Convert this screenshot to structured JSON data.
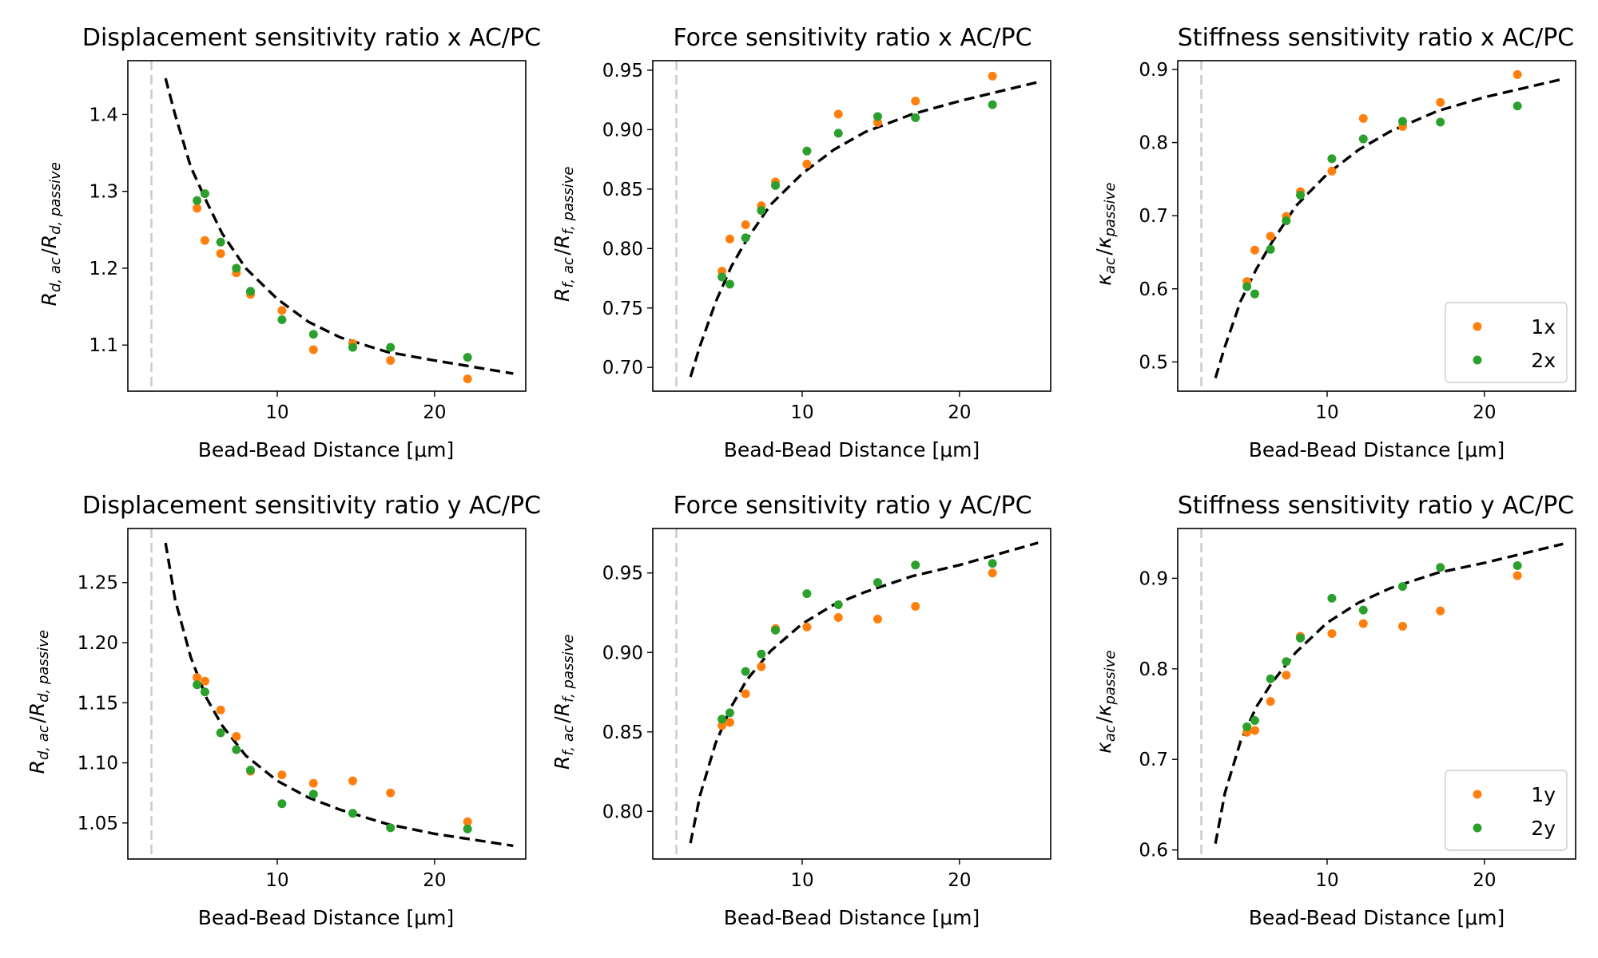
{
  "colors": {
    "orange": "#ff7f0e",
    "green": "#2ca02c",
    "fit": "#000000",
    "reference": "#cccccc"
  },
  "chart_data": [
    {
      "type": "scatter",
      "title": "Displacement sensitivity ratio x AC/PC",
      "xlabel": "Bead-Bead Distance [μm]",
      "ylabel_main": "R",
      "ylabel_parts": [
        {
          "text": "R",
          "style": "italic"
        },
        {
          "text": "d, ac",
          "style": "sub"
        },
        {
          "text": "/",
          "style": "normal"
        },
        {
          "text": "R",
          "style": "italic"
        },
        {
          "text": "d, passive",
          "style": "sub"
        }
      ],
      "xlim": [
        0.5,
        25.8
      ],
      "ylim": [
        1.04,
        1.47
      ],
      "xticks": [
        10,
        20
      ],
      "yticks": [
        1.1,
        1.2,
        1.3,
        1.4
      ],
      "ytick_labels": [
        "1.1",
        "1.2",
        "1.3",
        "1.4"
      ],
      "reference_x": 2.0,
      "legend": null,
      "series": [
        {
          "color": "orange",
          "x": [
            4.9,
            5.4,
            6.4,
            7.4,
            8.3,
            10.3,
            12.3,
            14.8,
            17.2,
            22.1
          ],
          "y": [
            1.278,
            1.236,
            1.219,
            1.194,
            1.166,
            1.145,
            1.094,
            1.102,
            1.08,
            1.056
          ]
        },
        {
          "color": "green",
          "x": [
            4.9,
            5.4,
            6.4,
            7.4,
            8.3,
            10.3,
            12.3,
            14.8,
            17.2,
            22.1
          ],
          "y": [
            1.288,
            1.297,
            1.234,
            1.2,
            1.17,
            1.133,
            1.114,
            1.097,
            1.097,
            1.084
          ]
        }
      ],
      "fit": {
        "x": [
          2.9,
          3.5,
          4.5,
          5.5,
          6.5,
          8,
          10,
          12,
          14,
          17,
          20,
          25
        ],
        "y": [
          1.447,
          1.4,
          1.332,
          1.287,
          1.245,
          1.2,
          1.16,
          1.13,
          1.11,
          1.091,
          1.08,
          1.063
        ]
      }
    },
    {
      "type": "scatter",
      "title": "Force sensitivity ratio x AC/PC",
      "xlabel": "Bead-Bead Distance [μm]",
      "ylabel_parts": [
        {
          "text": "R",
          "style": "italic"
        },
        {
          "text": "f, ac",
          "style": "sub"
        },
        {
          "text": "/",
          "style": "normal"
        },
        {
          "text": "R",
          "style": "italic"
        },
        {
          "text": "f, passive",
          "style": "sub"
        }
      ],
      "xlim": [
        0.5,
        25.8
      ],
      "ylim": [
        0.68,
        0.958
      ],
      "xticks": [
        10,
        20
      ],
      "yticks": [
        0.7,
        0.75,
        0.8,
        0.85,
        0.9,
        0.95
      ],
      "ytick_labels": [
        "0.70",
        "0.75",
        "0.80",
        "0.85",
        "0.90",
        "0.95"
      ],
      "reference_x": 2.0,
      "legend": null,
      "series": [
        {
          "color": "orange",
          "x": [
            4.9,
            5.4,
            6.4,
            7.4,
            8.3,
            10.3,
            12.3,
            14.8,
            17.2,
            22.1
          ],
          "y": [
            0.781,
            0.808,
            0.82,
            0.836,
            0.856,
            0.871,
            0.913,
            0.906,
            0.924,
            0.945
          ]
        },
        {
          "color": "green",
          "x": [
            4.9,
            5.4,
            6.4,
            7.4,
            8.3,
            10.3,
            12.3,
            14.8,
            17.2,
            22.1
          ],
          "y": [
            0.776,
            0.77,
            0.809,
            0.832,
            0.853,
            0.882,
            0.897,
            0.911,
            0.91,
            0.921
          ]
        }
      ],
      "fit": {
        "x": [
          2.9,
          3.5,
          4.5,
          5.5,
          6.5,
          8,
          10,
          12,
          14,
          17,
          20,
          25
        ],
        "y": [
          0.692,
          0.718,
          0.755,
          0.785,
          0.808,
          0.837,
          0.863,
          0.883,
          0.898,
          0.913,
          0.924,
          0.94
        ]
      }
    },
    {
      "type": "scatter",
      "title": "Stiffness sensitivity ratio x AC/PC",
      "xlabel": "Bead-Bead Distance [μm]",
      "ylabel_parts": [
        {
          "text": "κ",
          "style": "italic"
        },
        {
          "text": "ac",
          "style": "sub"
        },
        {
          "text": "/",
          "style": "normal"
        },
        {
          "text": "κ",
          "style": "italic"
        },
        {
          "text": "passive",
          "style": "sub"
        }
      ],
      "xlim": [
        0.5,
        25.8
      ],
      "ylim": [
        0.46,
        0.912
      ],
      "xticks": [
        10,
        20
      ],
      "yticks": [
        0.5,
        0.6,
        0.7,
        0.8,
        0.9
      ],
      "ytick_labels": [
        "0.5",
        "0.6",
        "0.7",
        "0.8",
        "0.9"
      ],
      "reference_x": 2.0,
      "legend": {
        "position": "lower-right",
        "entries": [
          {
            "label": "1x",
            "color": "orange"
          },
          {
            "label": "2x",
            "color": "green"
          }
        ]
      },
      "series": [
        {
          "color": "orange",
          "x": [
            4.9,
            5.4,
            6.4,
            7.4,
            8.3,
            10.3,
            12.3,
            14.8,
            17.2,
            22.1
          ],
          "y": [
            0.61,
            0.653,
            0.672,
            0.699,
            0.733,
            0.761,
            0.833,
            0.822,
            0.855,
            0.893
          ]
        },
        {
          "color": "green",
          "x": [
            4.9,
            5.4,
            6.4,
            7.4,
            8.3,
            10.3,
            12.3,
            14.8,
            17.2,
            22.1
          ],
          "y": [
            0.603,
            0.593,
            0.654,
            0.693,
            0.728,
            0.778,
            0.805,
            0.829,
            0.828,
            0.85
          ]
        }
      ],
      "fit": {
        "x": [
          2.9,
          3.5,
          4.5,
          5.5,
          6.5,
          8,
          10,
          12,
          14,
          17,
          20,
          25
        ],
        "y": [
          0.478,
          0.521,
          0.583,
          0.627,
          0.664,
          0.713,
          0.757,
          0.79,
          0.815,
          0.843,
          0.862,
          0.887
        ]
      }
    },
    {
      "type": "scatter",
      "title": "Displacement sensitivity ratio y AC/PC",
      "xlabel": "Bead-Bead Distance [μm]",
      "ylabel_parts": [
        {
          "text": "R",
          "style": "italic"
        },
        {
          "text": "d, ac",
          "style": "sub"
        },
        {
          "text": "/",
          "style": "normal"
        },
        {
          "text": "R",
          "style": "italic"
        },
        {
          "text": "d, passive",
          "style": "sub"
        }
      ],
      "xlim": [
        0.5,
        25.8
      ],
      "ylim": [
        1.02,
        1.295
      ],
      "xticks": [
        10,
        20
      ],
      "yticks": [
        1.05,
        1.1,
        1.15,
        1.2,
        1.25
      ],
      "ytick_labels": [
        "1.05",
        "1.10",
        "1.15",
        "1.20",
        "1.25"
      ],
      "reference_x": 2.0,
      "legend": null,
      "series": [
        {
          "color": "orange",
          "x": [
            4.9,
            5.4,
            6.4,
            7.4,
            8.3,
            10.3,
            12.3,
            14.8,
            17.2,
            22.1
          ],
          "y": [
            1.171,
            1.168,
            1.144,
            1.122,
            1.093,
            1.09,
            1.083,
            1.085,
            1.075,
            1.051
          ]
        },
        {
          "color": "green",
          "x": [
            4.9,
            5.4,
            6.4,
            7.4,
            8.3,
            10.3,
            12.3,
            14.8,
            17.2,
            22.1
          ],
          "y": [
            1.165,
            1.159,
            1.125,
            1.111,
            1.094,
            1.066,
            1.074,
            1.058,
            1.046,
            1.045
          ]
        }
      ],
      "fit": {
        "x": [
          2.9,
          3.5,
          4.5,
          5.5,
          6.5,
          8,
          10,
          12,
          14,
          17,
          20,
          25
        ],
        "y": [
          1.283,
          1.236,
          1.188,
          1.154,
          1.131,
          1.106,
          1.085,
          1.071,
          1.061,
          1.049,
          1.041,
          1.031
        ]
      }
    },
    {
      "type": "scatter",
      "title": "Force sensitivity ratio y AC/PC",
      "xlabel": "Bead-Bead Distance [μm]",
      "ylabel_parts": [
        {
          "text": "R",
          "style": "italic"
        },
        {
          "text": "f, ac",
          "style": "sub"
        },
        {
          "text": "/",
          "style": "normal"
        },
        {
          "text": "R",
          "style": "italic"
        },
        {
          "text": "f, passive",
          "style": "sub"
        }
      ],
      "xlim": [
        0.5,
        25.8
      ],
      "ylim": [
        0.77,
        0.978
      ],
      "xticks": [
        10,
        20
      ],
      "yticks": [
        0.8,
        0.85,
        0.9,
        0.95
      ],
      "ytick_labels": [
        "0.80",
        "0.85",
        "0.90",
        "0.95"
      ],
      "reference_x": 2.0,
      "legend": null,
      "series": [
        {
          "color": "orange",
          "x": [
            4.9,
            5.4,
            6.4,
            7.4,
            8.3,
            10.3,
            12.3,
            14.8,
            17.2,
            22.1
          ],
          "y": [
            0.854,
            0.856,
            0.874,
            0.891,
            0.915,
            0.916,
            0.922,
            0.921,
            0.929,
            0.95
          ]
        },
        {
          "color": "green",
          "x": [
            4.9,
            5.4,
            6.4,
            7.4,
            8.3,
            10.3,
            12.3,
            14.8,
            17.2,
            22.1
          ],
          "y": [
            0.858,
            0.862,
            0.888,
            0.899,
            0.914,
            0.937,
            0.93,
            0.944,
            0.955,
            0.956
          ]
        }
      ],
      "fit": {
        "x": [
          2.9,
          3.5,
          4.5,
          5.5,
          6.5,
          8,
          10,
          12,
          14,
          17,
          20,
          25
        ],
        "y": [
          0.78,
          0.81,
          0.843,
          0.866,
          0.883,
          0.901,
          0.918,
          0.93,
          0.938,
          0.948,
          0.955,
          0.969
        ]
      }
    },
    {
      "type": "scatter",
      "title": "Stiffness sensitivity ratio y AC/PC",
      "xlabel": "Bead-Bead Distance [μm]",
      "ylabel_parts": [
        {
          "text": "κ",
          "style": "italic"
        },
        {
          "text": "ac",
          "style": "sub"
        },
        {
          "text": "/",
          "style": "normal"
        },
        {
          "text": "κ",
          "style": "italic"
        },
        {
          "text": "passive",
          "style": "sub"
        }
      ],
      "xlim": [
        0.5,
        25.8
      ],
      "ylim": [
        0.59,
        0.955
      ],
      "xticks": [
        10,
        20
      ],
      "yticks": [
        0.6,
        0.7,
        0.8,
        0.9
      ],
      "ytick_labels": [
        "0.6",
        "0.7",
        "0.8",
        "0.9"
      ],
      "reference_x": 2.0,
      "legend": {
        "position": "lower-right",
        "entries": [
          {
            "label": "1y",
            "color": "orange"
          },
          {
            "label": "2y",
            "color": "green"
          }
        ]
      },
      "series": [
        {
          "color": "orange",
          "x": [
            4.9,
            5.4,
            6.4,
            7.4,
            8.3,
            10.3,
            12.3,
            14.8,
            17.2,
            22.1
          ],
          "y": [
            0.73,
            0.732,
            0.764,
            0.793,
            0.836,
            0.839,
            0.85,
            0.847,
            0.864,
            0.903
          ]
        },
        {
          "color": "green",
          "x": [
            4.9,
            5.4,
            6.4,
            7.4,
            8.3,
            10.3,
            12.3,
            14.8,
            17.2,
            22.1
          ],
          "y": [
            0.736,
            0.743,
            0.789,
            0.808,
            0.834,
            0.878,
            0.865,
            0.891,
            0.912,
            0.914
          ]
        }
      ],
      "fit": {
        "x": [
          2.9,
          3.5,
          4.5,
          5.5,
          6.5,
          8,
          10,
          12,
          14,
          17,
          20,
          25
        ],
        "y": [
          0.607,
          0.663,
          0.72,
          0.758,
          0.785,
          0.818,
          0.851,
          0.873,
          0.889,
          0.906,
          0.917,
          0.938
        ]
      }
    }
  ]
}
